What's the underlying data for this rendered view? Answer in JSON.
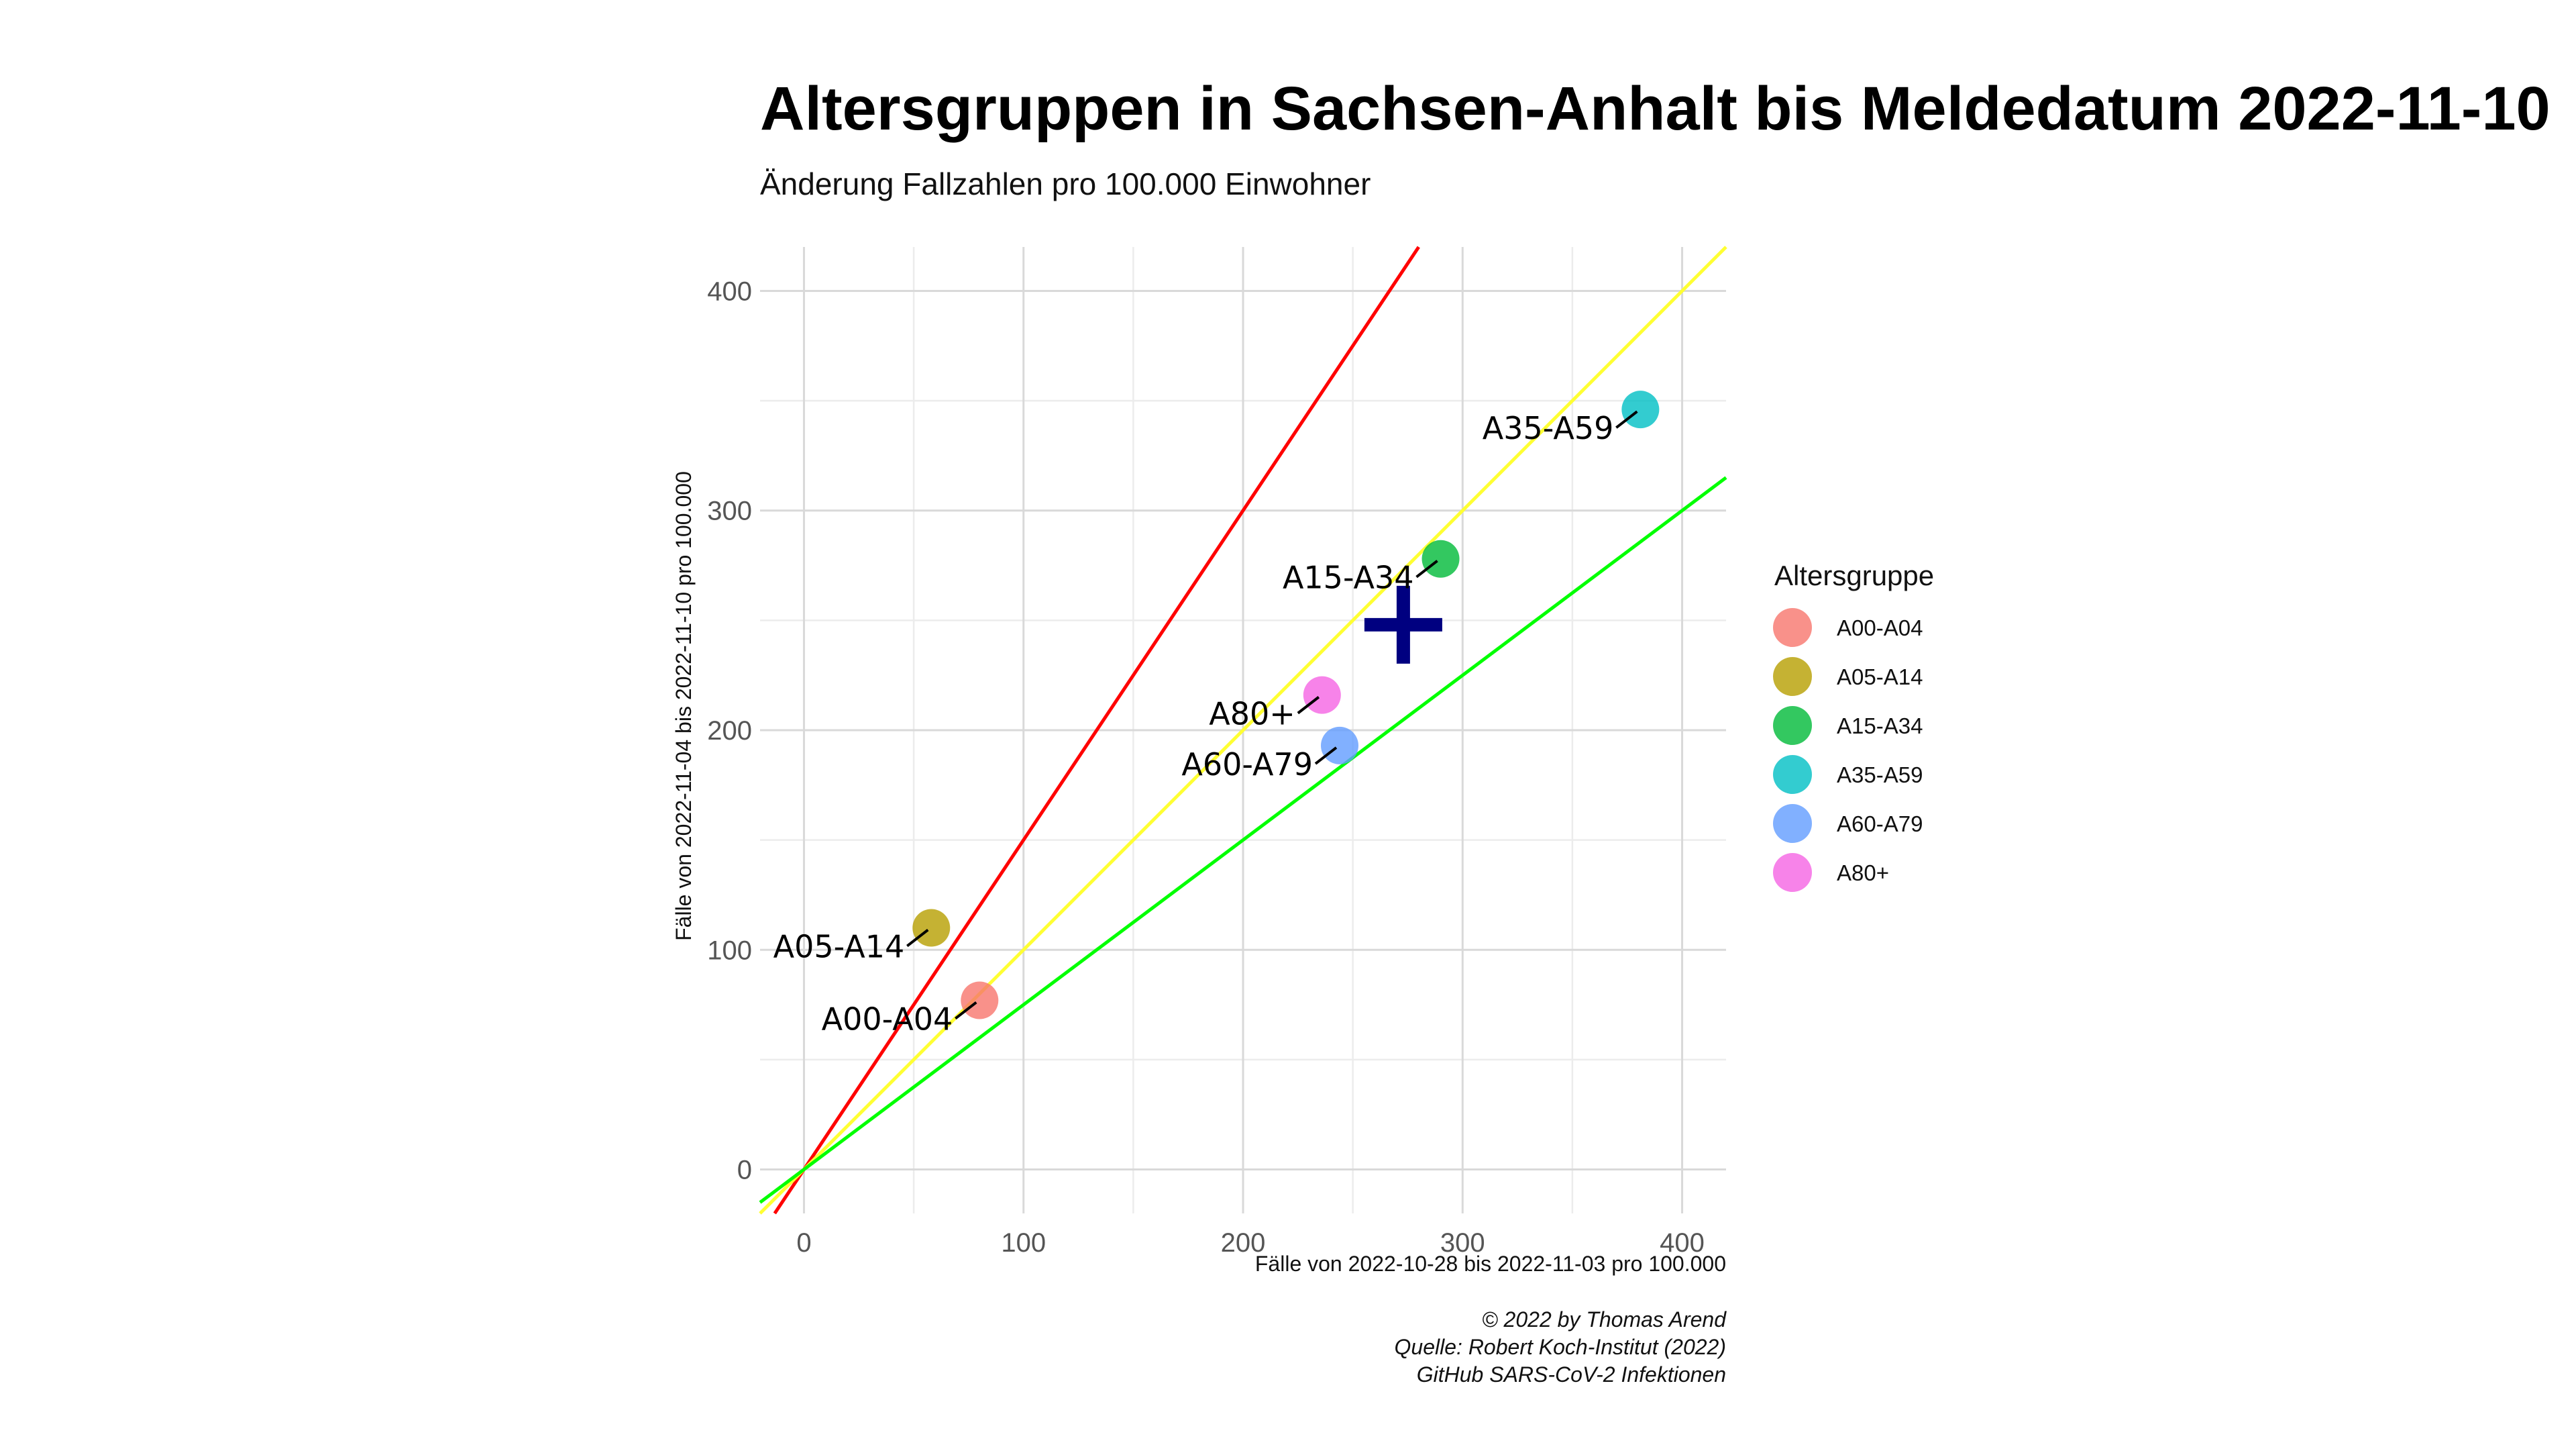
{
  "chart_data": {
    "type": "scatter",
    "title": "Altersgruppen in Sachsen-Anhalt bis Meldedatum 2022-11-10",
    "subtitle": "Änderung Fallzahlen pro 100.000 Einwohner",
    "xlabel": "Fälle von 2022-10-28 bis 2022-11-03 pro 100.000",
    "ylabel": "Fälle von 2022-11-04 bis 2022-11-10 pro 100.000",
    "xlim": [
      -20,
      420
    ],
    "ylim": [
      -20,
      420
    ],
    "xticks": [
      0,
      100,
      200,
      300,
      400
    ],
    "yticks": [
      0,
      100,
      200,
      300,
      400
    ],
    "grid": true,
    "legend": {
      "title": "Altersgruppe",
      "position": "right"
    },
    "reference_lines": [
      {
        "slope": 1.5,
        "color": "#ff0000"
      },
      {
        "slope": 1.0,
        "color": "#ffff33"
      },
      {
        "slope": 0.75,
        "color": "#00ff00"
      }
    ],
    "mean_marker": {
      "x": 273,
      "y": 248,
      "color": "#000080"
    },
    "series": [
      {
        "name": "A00-A04",
        "x": 80,
        "y": 77,
        "color": "#F8766D"
      },
      {
        "name": "A05-A14",
        "x": 58,
        "y": 110,
        "color": "#B79F00"
      },
      {
        "name": "A15-A34",
        "x": 290,
        "y": 278,
        "color": "#00BA38"
      },
      {
        "name": "A35-A59",
        "x": 381,
        "y": 346,
        "color": "#00BFC4"
      },
      {
        "name": "A60-A79",
        "x": 244,
        "y": 193,
        "color": "#619CFF"
      },
      {
        "name": "A80+",
        "x": 236,
        "y": 216,
        "color": "#F564E3"
      }
    ],
    "caption": [
      "© 2022 by Thomas Arend",
      "Quelle: Robert Koch-Institut (2022)",
      "GitHub SARS-CoV-2 Infektionen"
    ]
  }
}
